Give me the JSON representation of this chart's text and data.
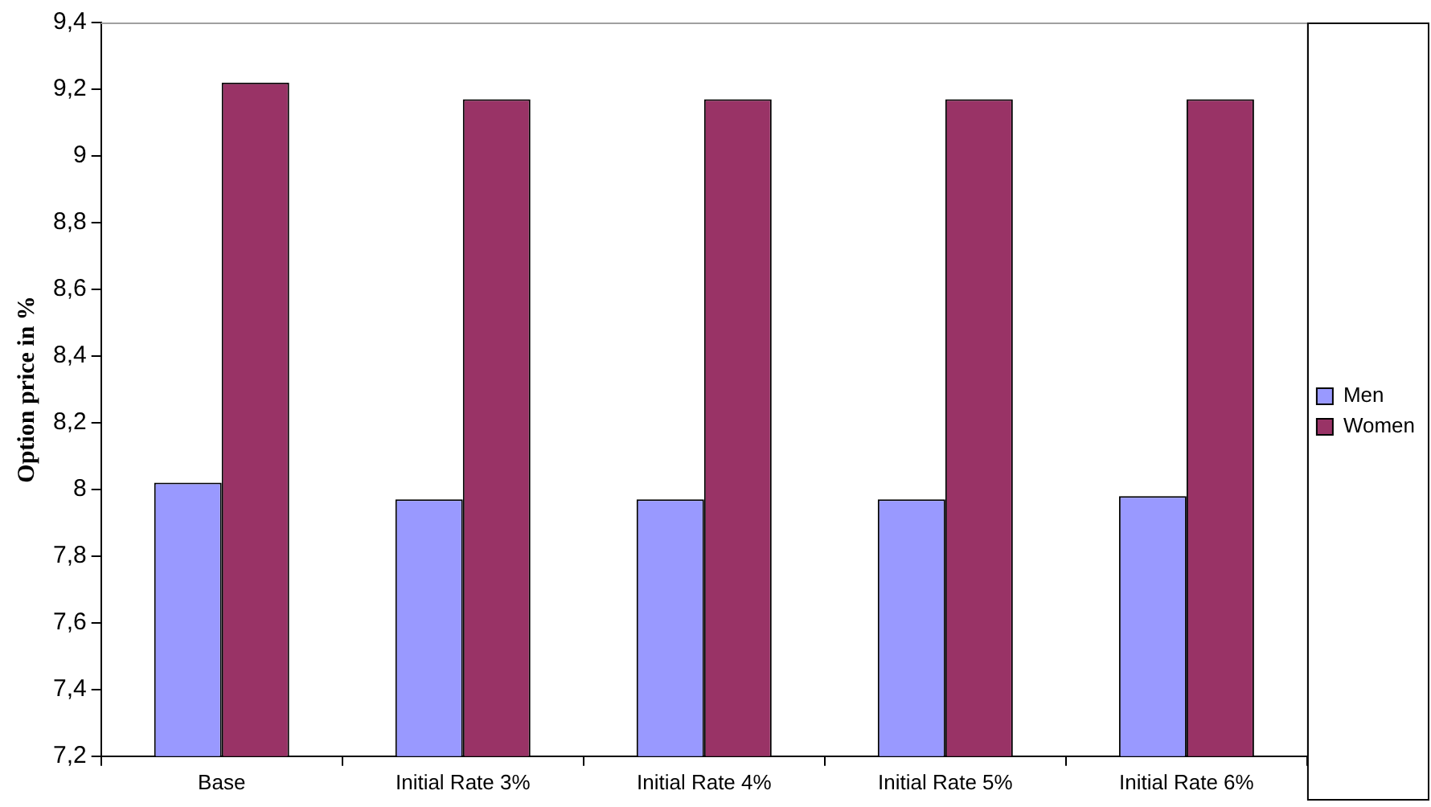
{
  "chart_data": {
    "type": "bar",
    "ylabel": "Option price in %",
    "categories": [
      "Base",
      "Initial Rate 3%",
      "Initial Rate 4%",
      "Initial Rate 5%",
      "Initial Rate 6%"
    ],
    "series": [
      {
        "name": "Men",
        "color": "#9999ff",
        "values": [
          8.02,
          7.97,
          7.97,
          7.97,
          7.98
        ]
      },
      {
        "name": "Women",
        "color": "#993366",
        "values": [
          9.22,
          9.17,
          9.17,
          9.17,
          9.17
        ]
      }
    ],
    "ylim": [
      7.2,
      9.4
    ],
    "yticks": [
      {
        "value": 7.2,
        "label": "7,2"
      },
      {
        "value": 7.4,
        "label": "7,4"
      },
      {
        "value": 7.6,
        "label": "7,6"
      },
      {
        "value": 7.8,
        "label": "7,8"
      },
      {
        "value": 8,
        "label": "8"
      },
      {
        "value": 8.2,
        "label": "8,2"
      },
      {
        "value": 8.4,
        "label": "8,4"
      },
      {
        "value": 8.6,
        "label": "8,6"
      },
      {
        "value": 8.8,
        "label": "8,8"
      },
      {
        "value": 9,
        "label": "9"
      },
      {
        "value": 9.2,
        "label": "9,2"
      },
      {
        "value": 9.4,
        "label": "9,4"
      }
    ],
    "grid": false,
    "legend": "right"
  }
}
